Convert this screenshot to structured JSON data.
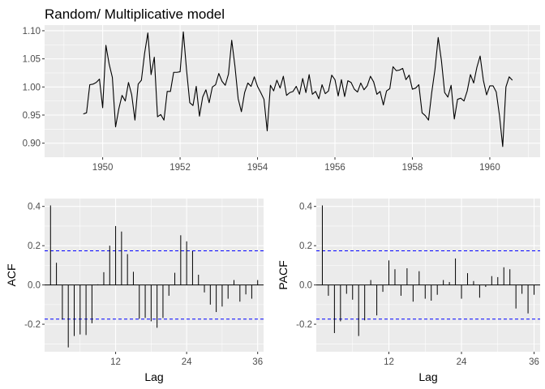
{
  "chart_data": [
    {
      "type": "line",
      "title": "Random/ Multiplicative model",
      "xlabel": "",
      "ylabel": "",
      "xlim": [
        1948.5,
        1961.3
      ],
      "ylim": [
        0.875,
        1.11
      ],
      "x_major_ticks": [
        1950,
        1952,
        1954,
        1956,
        1958,
        1960
      ],
      "x_tick_labels": [
        "1950",
        "1952",
        "1954",
        "1956",
        "1958",
        "1960"
      ],
      "x_minor_ticks": [
        1949,
        1951,
        1953,
        1955,
        1957,
        1959,
        1961
      ],
      "y_major_ticks": [
        0.9,
        0.95,
        1.0,
        1.05,
        1.1
      ],
      "y_tick_labels": [
        "0.90",
        "0.95",
        "1.00",
        "1.05",
        "1.10"
      ],
      "y_minor_ticks": [
        0.925,
        0.975,
        1.025,
        1.075
      ],
      "grid": true,
      "line_color": "#000000",
      "x_start": 1949.5,
      "x_step": 0.0833333,
      "values": [
        0.952,
        0.954,
        1.004,
        1.005,
        1.008,
        1.014,
        0.963,
        1.074,
        1.041,
        1.017,
        0.929,
        0.961,
        0.985,
        0.975,
        1.008,
        0.986,
        0.941,
        1.005,
        1.012,
        1.06,
        1.096,
        1.022,
        1.053,
        0.947,
        0.951,
        0.941,
        0.992,
        0.992,
        1.026,
        1.026,
        1.027,
        1.098,
        1.03,
        0.972,
        0.967,
        1.001,
        0.948,
        0.982,
        0.995,
        0.972,
        1.0,
        1.004,
        1.024,
        1.01,
        1.003,
        1.023,
        1.083,
        1.037,
        0.979,
        0.956,
        0.99,
        1.007,
        1.001,
        1.018,
        1.001,
        0.99,
        0.978,
        0.922,
        1.003,
        0.993,
        1.012,
        0.998,
        1.019,
        0.985,
        0.99,
        0.992,
        1.001,
        0.987,
        1.015,
        0.99,
        1.022,
        0.987,
        0.992,
        0.979,
        1.004,
        0.988,
        0.993,
        1.021,
        1.013,
        0.984,
        1.013,
        0.983,
        1.011,
        1.008,
        0.996,
        0.991,
        1.007,
        0.995,
        1.002,
        1.019,
        1.009,
        0.987,
        0.992,
        0.968,
        0.993,
        0.997,
        1.036,
        1.029,
        1.03,
        1.033,
        1.013,
        1.021,
        0.996,
        0.998,
        1.004,
        0.954,
        0.949,
        0.941,
        0.99,
        1.031,
        1.088,
        1.047,
        0.99,
        0.982,
        1.003,
        0.943,
        0.978,
        0.98,
        0.975,
        0.993,
        1.022,
        1.007,
        1.035,
        1.055,
        1.012,
        0.986,
        1.002,
        1.002,
        0.991,
        0.949,
        0.894,
        1.0,
        1.018,
        1.012
      ]
    },
    {
      "type": "bar",
      "title": "",
      "xlabel": "Lag",
      "ylabel": "ACF",
      "xlim": [
        0,
        37
      ],
      "ylim": [
        -0.34,
        0.44
      ],
      "x_major_ticks": [
        12,
        24,
        36
      ],
      "x_tick_labels": [
        "12",
        "24",
        "36"
      ],
      "x_minor_ticks": [
        6,
        18,
        30
      ],
      "y_major_ticks": [
        -0.2,
        0.0,
        0.2,
        0.4
      ],
      "y_tick_labels": [
        "-0.2",
        "0.0",
        "0.2",
        "0.4"
      ],
      "y_minor_ticks": [
        -0.3,
        -0.1,
        0.1,
        0.3
      ],
      "grid": true,
      "ci": 0.174,
      "ci_color": "#0000ff",
      "lags": [
        1,
        2,
        3,
        4,
        5,
        6,
        7,
        8,
        9,
        10,
        11,
        12,
        13,
        14,
        15,
        16,
        17,
        18,
        19,
        20,
        21,
        22,
        23,
        24,
        25,
        26,
        27,
        28,
        29,
        30,
        31,
        32,
        33,
        34,
        35,
        36
      ],
      "values": [
        0.405,
        0.113,
        -0.176,
        -0.318,
        -0.26,
        -0.252,
        -0.255,
        -0.195,
        0.003,
        0.065,
        0.2,
        0.3,
        0.272,
        0.157,
        0.067,
        -0.172,
        -0.168,
        -0.185,
        -0.218,
        -0.168,
        -0.055,
        0.062,
        0.253,
        0.222,
        0.172,
        0.052,
        -0.038,
        -0.1,
        -0.138,
        -0.11,
        -0.07,
        0.025,
        -0.085,
        -0.048,
        -0.07,
        0.025
      ]
    },
    {
      "type": "bar",
      "title": "",
      "xlabel": "Lag",
      "ylabel": "PACF",
      "xlim": [
        0,
        37
      ],
      "ylim": [
        -0.34,
        0.44
      ],
      "x_major_ticks": [
        12,
        24,
        36
      ],
      "x_tick_labels": [
        "12",
        "24",
        "36"
      ],
      "x_minor_ticks": [
        6,
        18,
        30
      ],
      "y_major_ticks": [
        -0.2,
        0.0,
        0.2,
        0.4
      ],
      "y_tick_labels": [
        "-0.2",
        "0.0",
        "0.2",
        "0.4"
      ],
      "y_minor_ticks": [
        -0.3,
        -0.1,
        0.1,
        0.3
      ],
      "grid": true,
      "ci": 0.174,
      "ci_color": "#0000ff",
      "lags": [
        1,
        2,
        3,
        4,
        5,
        6,
        7,
        8,
        9,
        10,
        11,
        12,
        13,
        14,
        15,
        16,
        17,
        18,
        19,
        20,
        21,
        22,
        23,
        24,
        25,
        26,
        27,
        28,
        29,
        30,
        31,
        32,
        33,
        34,
        35,
        36
      ],
      "values": [
        0.405,
        -0.055,
        -0.245,
        -0.185,
        -0.045,
        -0.075,
        -0.26,
        -0.18,
        0.025,
        -0.155,
        -0.035,
        0.125,
        0.08,
        -0.055,
        0.085,
        -0.085,
        0.07,
        -0.07,
        -0.08,
        -0.05,
        0.025,
        0.015,
        0.135,
        -0.07,
        0.06,
        0.02,
        -0.065,
        -0.01,
        0.045,
        0.04,
        0.09,
        0.08,
        -0.12,
        -0.045,
        -0.145,
        -0.05
      ]
    }
  ]
}
